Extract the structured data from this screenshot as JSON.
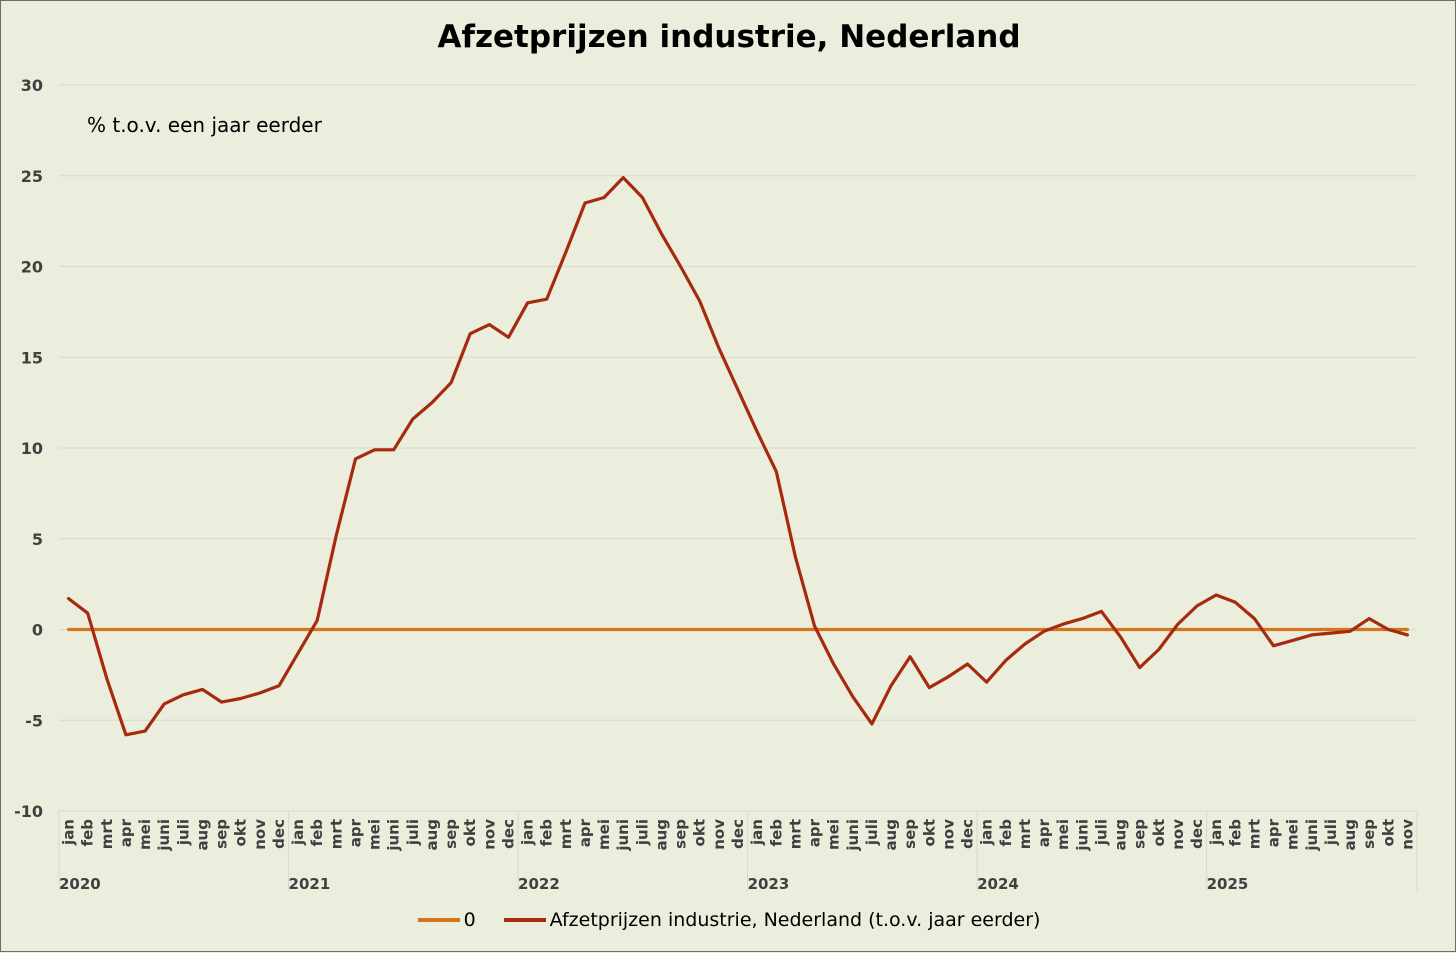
{
  "chart_data": {
    "type": "line",
    "title": "Afzetprijzen industrie, Nederland",
    "ylabel": "% t.o.v. een jaar eerder",
    "ylim": [
      -10,
      30
    ],
    "yticks": [
      30,
      25,
      20,
      15,
      10,
      5,
      0,
      -5,
      -10
    ],
    "months": [
      "jan",
      "feb",
      "mrt",
      "apr",
      "mei",
      "juni",
      "juli",
      "aug",
      "sep",
      "okt",
      "nov",
      "dec",
      "jan",
      "feb",
      "mrt",
      "apr",
      "mei",
      "juni",
      "juli",
      "aug",
      "sep",
      "okt",
      "nov",
      "dec",
      "jan",
      "feb",
      "mrt",
      "apr",
      "mei",
      "juni",
      "juli",
      "aug",
      "sep",
      "okt",
      "nov",
      "dec",
      "jan",
      "feb",
      "mrt",
      "apr",
      "mei",
      "juni",
      "juli",
      "aug",
      "sep",
      "okt",
      "nov",
      "dec",
      "jan",
      "feb",
      "mrt",
      "apr",
      "mei",
      "juni",
      "juli",
      "aug",
      "sep",
      "okt",
      "nov",
      "dec",
      "jan",
      "feb",
      "mrt",
      "apr",
      "mei",
      "juni",
      "juli",
      "aug",
      "sep",
      "okt",
      "nov"
    ],
    "years": [
      {
        "label": "2020",
        "start_index": 0
      },
      {
        "label": "2021",
        "start_index": 12
      },
      {
        "label": "2022",
        "start_index": 24
      },
      {
        "label": "2023",
        "start_index": 36
      },
      {
        "label": "2024",
        "start_index": 48
      },
      {
        "label": "2025",
        "start_index": 60
      }
    ],
    "series": [
      {
        "name": "0",
        "color": "#d4761c",
        "values": [
          0,
          0,
          0,
          0,
          0,
          0,
          0,
          0,
          0,
          0,
          0,
          0,
          0,
          0,
          0,
          0,
          0,
          0,
          0,
          0,
          0,
          0,
          0,
          0,
          0,
          0,
          0,
          0,
          0,
          0,
          0,
          0,
          0,
          0,
          0,
          0,
          0,
          0,
          0,
          0,
          0,
          0,
          0,
          0,
          0,
          0,
          0,
          0,
          0,
          0,
          0,
          0,
          0,
          0,
          0,
          0,
          0,
          0,
          0,
          0,
          0,
          0,
          0,
          0,
          0,
          0,
          0,
          0,
          0,
          0,
          0
        ]
      },
      {
        "name": "Afzetprijzen industrie, Nederland (t.o.v. jaar eerder)",
        "color": "#a52a0e",
        "values": [
          1.7,
          0.9,
          -2.7,
          -5.8,
          -5.6,
          -4.1,
          -3.6,
          -3.3,
          -4.0,
          -3.8,
          -3.5,
          -3.1,
          -1.3,
          0.5,
          5.2,
          9.4,
          9.9,
          9.9,
          11.6,
          12.5,
          13.6,
          16.3,
          16.8,
          16.1,
          18.0,
          18.2,
          20.8,
          23.5,
          23.8,
          24.9,
          23.8,
          21.8,
          20.0,
          18.1,
          15.5,
          13.2,
          10.9,
          8.7,
          4.0,
          0.2,
          -1.9,
          -3.7,
          -5.2,
          -3.1,
          -1.5,
          -3.2,
          -2.6,
          -1.9,
          -2.9,
          -1.7,
          -0.8,
          -0.1,
          0.3,
          0.6,
          1.0,
          -0.4,
          -2.1,
          -1.1,
          0.3,
          1.3,
          1.9,
          1.5,
          0.6,
          -0.9,
          -0.6,
          -0.3,
          -0.2,
          -0.1,
          0.6,
          0.0,
          -0.3
        ]
      }
    ]
  }
}
